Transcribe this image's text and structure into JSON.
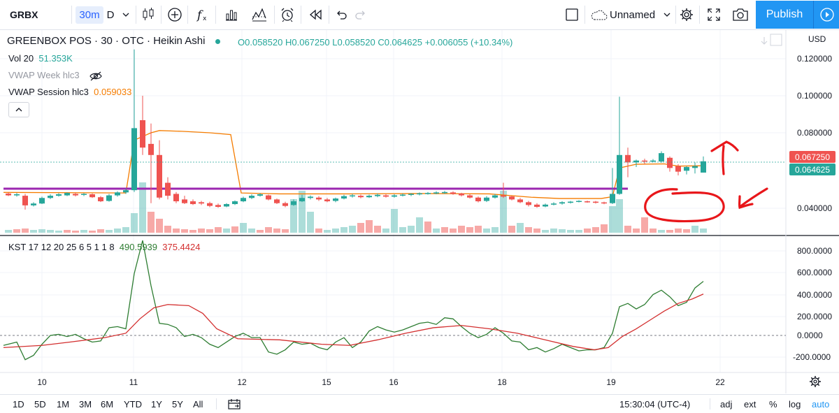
{
  "toolbar": {
    "symbol": "GRBX",
    "interval": "30m",
    "range_code": "D",
    "layout_name": "Unnamed",
    "publish_label": "Publish"
  },
  "legend": {
    "title": "GREENBOX POS · 30 · OTC · Heikin Ashi",
    "ohlc": {
      "o_label": "O",
      "o": "0.058520",
      "h_label": "H",
      "h": "0.067250",
      "l_label": "L",
      "l": "0.058520",
      "c_label": "C",
      "c": "0.064625",
      "change": "+0.006055 (+10.34%)"
    },
    "vol_label": "Vol 20",
    "vol_value": "51.353K",
    "vwap_week_label": "VWAP Week hlc3",
    "vwap_session_label": "VWAP Session hlc3",
    "vwap_session_value": "0.059033",
    "kst_label": "KST 17 12 20 25 6 5 1 1 8",
    "kst_value1": "490.5939",
    "kst_value2": "375.4424"
  },
  "price_axis": {
    "currency": "USD",
    "ticks": [
      "0.120000",
      "0.100000",
      "0.080000",
      "0.040000"
    ],
    "label_high": "0.067250",
    "label_close": "0.064625"
  },
  "kst_axis": {
    "ticks": [
      "800.0000",
      "600.0000",
      "400.0000",
      "200.0000",
      "0.0000",
      "-200.0000"
    ]
  },
  "time_axis": {
    "ticks": [
      "10",
      "11",
      "12",
      "15",
      "16",
      "18",
      "19",
      "22"
    ]
  },
  "bottom": {
    "ranges": [
      "1D",
      "5D",
      "1M",
      "3M",
      "6M",
      "YTD",
      "1Y",
      "5Y",
      "All"
    ],
    "time": "15:30:04 (UTC-4)",
    "opts": [
      "adj",
      "ext",
      "%",
      "log",
      "auto"
    ]
  },
  "colors": {
    "up": "#26a69a",
    "down": "#ef5350",
    "vwap": "#f57c00",
    "hline": "#9c27b0",
    "kst": "#2e7d32",
    "kst_signal": "#d32f2f",
    "accent": "#2196f3"
  }
}
